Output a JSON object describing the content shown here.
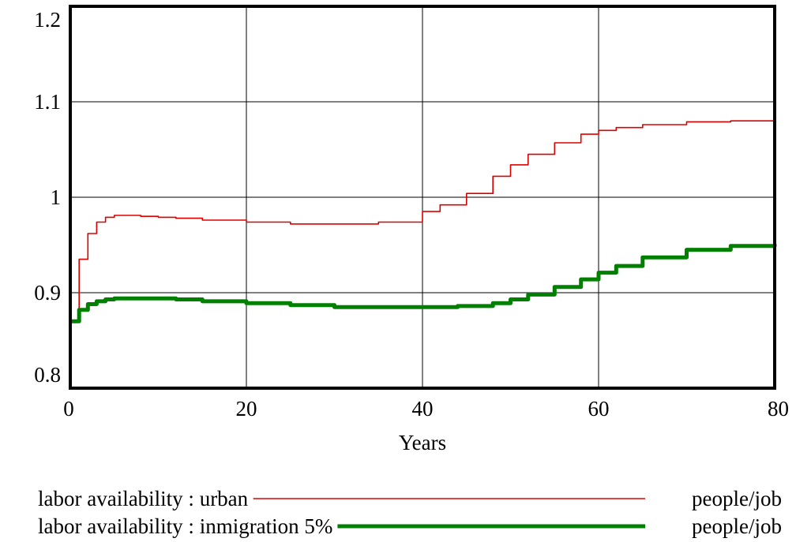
{
  "chart_data": {
    "type": "line",
    "title": "",
    "xlabel": "Years",
    "ylabel": "",
    "xlim": [
      0,
      80
    ],
    "ylim": [
      0.8,
      1.2
    ],
    "xticks": [
      "0",
      "20",
      "40",
      "60",
      "80"
    ],
    "xtick_values": [
      0,
      20,
      40,
      60,
      80
    ],
    "yticks": [
      "1.2",
      "1.1",
      "1",
      "0.9",
      "0.8"
    ],
    "ytick_values": [
      1.2,
      1.1,
      1.0,
      0.9,
      0.8
    ],
    "grid": true,
    "legend_position": "bottom",
    "series": [
      {
        "name": "labor availability : urban",
        "unit": "people/job",
        "color": "#dd0000",
        "line_style": "thin",
        "x": [
          0,
          1,
          2,
          3,
          4,
          5,
          6,
          8,
          10,
          12,
          15,
          20,
          25,
          30,
          35,
          40,
          42,
          45,
          48,
          50,
          52,
          55,
          58,
          60,
          62,
          65,
          70,
          75,
          80
        ],
        "y": [
          0.87,
          0.935,
          0.962,
          0.974,
          0.979,
          0.981,
          0.981,
          0.98,
          0.979,
          0.978,
          0.976,
          0.974,
          0.972,
          0.972,
          0.974,
          0.985,
          0.992,
          1.004,
          1.022,
          1.034,
          1.045,
          1.057,
          1.066,
          1.07,
          1.073,
          1.076,
          1.079,
          1.08,
          1.081
        ]
      },
      {
        "name": "labor availability : inmigration 5%",
        "unit": "people/job",
        "color": "#008000",
        "line_style": "thick",
        "x": [
          0,
          1,
          2,
          3,
          4,
          5,
          6,
          8,
          10,
          12,
          15,
          20,
          25,
          30,
          35,
          40,
          44,
          48,
          50,
          52,
          55,
          58,
          60,
          62,
          65,
          70,
          75,
          80
        ],
        "y": [
          0.87,
          0.882,
          0.888,
          0.891,
          0.893,
          0.894,
          0.894,
          0.894,
          0.894,
          0.893,
          0.891,
          0.889,
          0.887,
          0.885,
          0.885,
          0.885,
          0.886,
          0.889,
          0.893,
          0.898,
          0.906,
          0.914,
          0.921,
          0.928,
          0.937,
          0.945,
          0.949,
          0.951
        ]
      }
    ]
  }
}
